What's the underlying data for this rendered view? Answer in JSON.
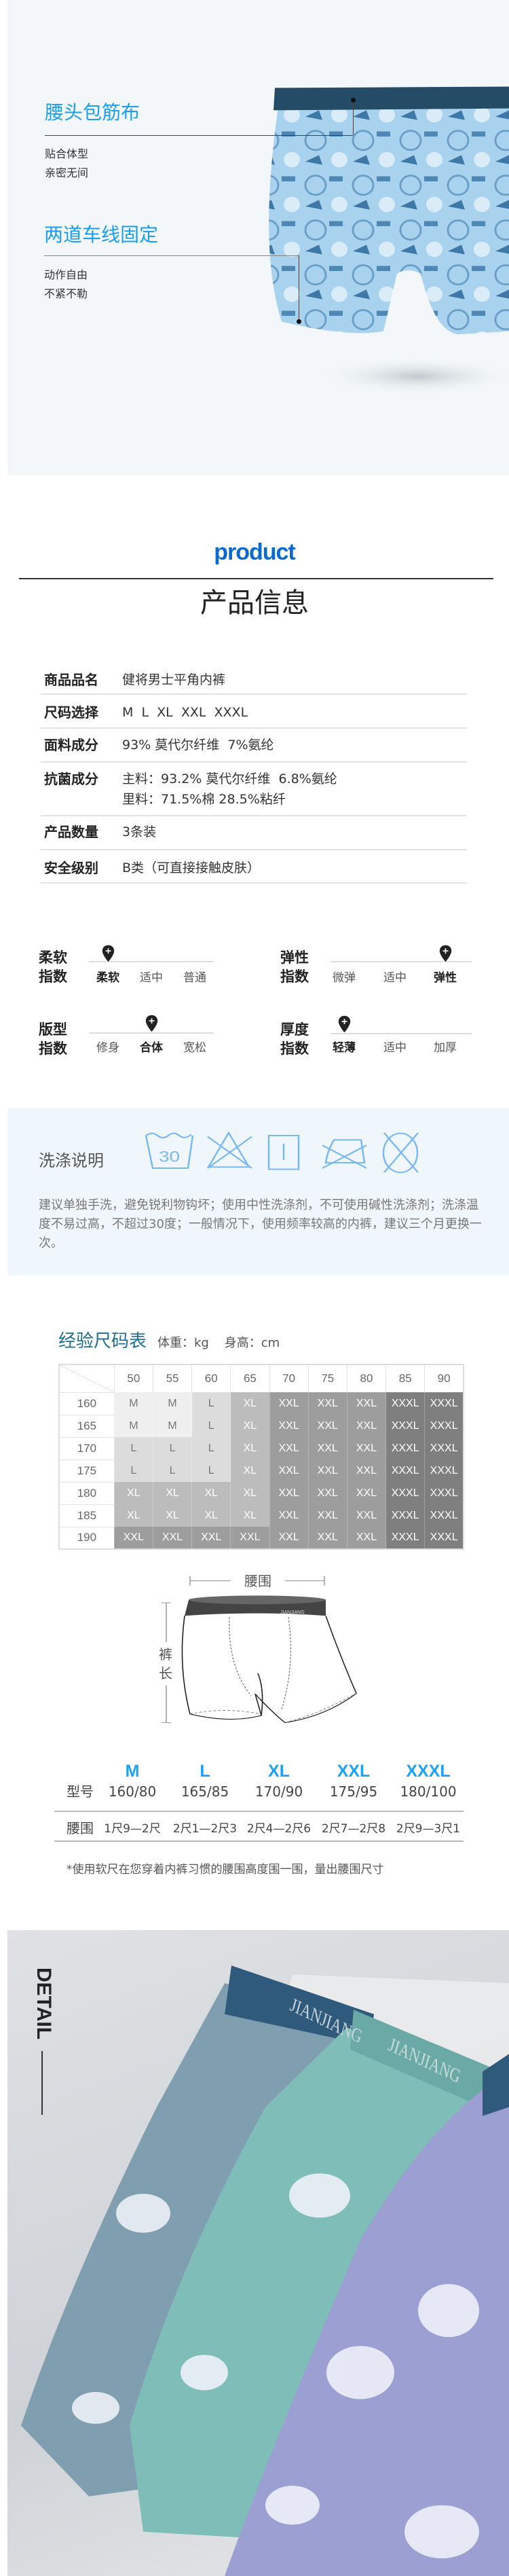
{
  "hero": {
    "feature1": {
      "title": "腰头包筋布",
      "lines": [
        "贴合体型",
        "亲密无间"
      ]
    },
    "feature2": {
      "title": "两道车线固定",
      "lines": [
        "动作自由",
        "不紧不勒"
      ]
    }
  },
  "product_section": {
    "heading_en": "product",
    "heading": "产品信息",
    "rows": [
      {
        "label": "商品品名",
        "value": "健将男士平角内裤"
      },
      {
        "label": "尺码选择",
        "value": "M  L  XL  XXL  XXXL"
      },
      {
        "label": "面料成分",
        "value": "93% 莫代尔纤维  7%氨纶"
      },
      {
        "label": "抗菌成分",
        "value": "主料：93.2% 莫代尔纤维  6.8%氨纶",
        "value2": "里料：71.5%棉 28.5%粘纤"
      },
      {
        "label": "产品数量",
        "value": "3条装"
      },
      {
        "label": "安全级别",
        "value": "B类（可直接接触皮肤）"
      }
    ]
  },
  "indices": [
    {
      "label1": "柔软",
      "label2": "指数",
      "options": [
        "柔软",
        "适中",
        "普通"
      ],
      "selected": 0
    },
    {
      "label1": "弹性",
      "label2": "指数",
      "options": [
        "微弹",
        "适中",
        "弹性"
      ],
      "selected": 2
    },
    {
      "label1": "版型",
      "label2": "指数",
      "options": [
        "修身",
        "合体",
        "宽松"
      ],
      "selected": 1
    },
    {
      "label1": "厚度",
      "label2": "指数",
      "options": [
        "轻薄",
        "适中",
        "加厚"
      ],
      "selected": 0
    }
  ],
  "washing": {
    "title": "洗涤说明",
    "icons": [
      "wash-30-icon",
      "no-bleach-icon",
      "line-dry-icon",
      "no-iron-icon",
      "no-dry-clean-icon"
    ],
    "wash_temp": "30",
    "icon_color": "#7ab8f5",
    "text": "建议单独手洗，避免锐利物钩坏；使用中性洗涤剂，不可使用碱性洗涤剂；洗涤温度不易过高，不超过30度；一般情况下，使用频率较高的内裤，建议三个月更换一次。"
  },
  "size_chart": {
    "title": "经验尺码表",
    "units": "体重：kg    身高：cm",
    "weights": [
      "50",
      "55",
      "60",
      "65",
      "70",
      "75",
      "80",
      "85",
      "90"
    ],
    "heights": [
      "160",
      "165",
      "170",
      "175",
      "180",
      "185",
      "190"
    ],
    "grid": [
      [
        "M",
        "M",
        "L",
        "XL",
        "XXL",
        "XXL",
        "XXL",
        "XXXL",
        "XXXL"
      ],
      [
        "M",
        "M",
        "L",
        "XL",
        "XXL",
        "XXL",
        "XXL",
        "XXXL",
        "XXXL"
      ],
      [
        "L",
        "L",
        "L",
        "XL",
        "XXL",
        "XXL",
        "XXL",
        "XXXL",
        "XXXL"
      ],
      [
        "L",
        "L",
        "L",
        "XL",
        "XXL",
        "XXL",
        "XXL",
        "XXXL",
        "XXXL"
      ],
      [
        "XL",
        "XL",
        "XL",
        "XL",
        "XXL",
        "XXL",
        "XXL",
        "XXXL",
        "XXXL"
      ],
      [
        "XL",
        "XL",
        "XL",
        "XL",
        "XXL",
        "XXL",
        "XXL",
        "XXXL",
        "XXXL"
      ],
      [
        "XXL",
        "XXL",
        "XXL",
        "XXL",
        "XXL",
        "XXL",
        "XXL",
        "XXXL",
        "XXXL"
      ]
    ],
    "colors": {
      "M": "#efefef",
      "L": "#dcdcdc",
      "XL": "#bcbcbc",
      "XXL": "#9d9d9d",
      "XXXL": "#7f7f7f"
    }
  },
  "diagram": {
    "waist_label": "腰围",
    "length_label": "裤长",
    "brand": "JIANJIANG"
  },
  "sizes": {
    "letters": [
      "M",
      "L",
      "XL",
      "XXL",
      "XXXL"
    ],
    "model_label": "型号",
    "models": [
      "160/80",
      "165/85",
      "170/90",
      "175/95",
      "180/100"
    ],
    "waist_label": "腰围",
    "waists": [
      "1尺9—2尺",
      "2尺1—2尺3",
      "2尺4—2尺6",
      "2尺7—2尺8",
      "2尺9—3尺1"
    ],
    "note": "*使用软尺在您穿着内裤习惯的腰围高度围一围，量出腰围尺寸"
  },
  "detail": {
    "label": "DETAIL",
    "brand": "JIANJIANG"
  }
}
